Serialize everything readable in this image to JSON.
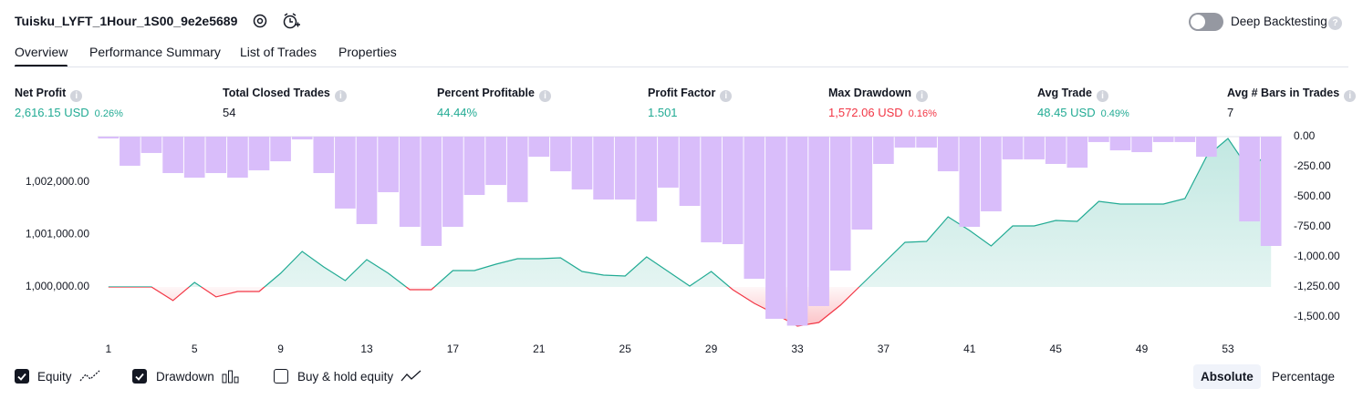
{
  "header": {
    "title": "Tuisku_LYFT_1Hour_1S00_9e2e5689",
    "deep_backtesting": "Deep Backtesting"
  },
  "tabs": [
    "Overview",
    "Performance Summary",
    "List of Trades",
    "Properties"
  ],
  "active_tab": 0,
  "metrics": [
    {
      "label": "Net Profit",
      "value": "2,616.15 USD",
      "percent": "0.26%",
      "color": "#22ab94"
    },
    {
      "label": "Total Closed Trades",
      "value": "54",
      "color": "#131722"
    },
    {
      "label": "Percent Profitable",
      "value": "44.44%",
      "color": "#22ab94"
    },
    {
      "label": "Profit Factor",
      "value": "1.501",
      "color": "#22ab94"
    },
    {
      "label": "Max Drawdown",
      "value": "1,572.06 USD",
      "percent": "0.16%",
      "color": "#f23645"
    },
    {
      "label": "Avg Trade",
      "value": "48.45 USD",
      "percent": "0.49%",
      "color": "#22ab94"
    },
    {
      "label": "Avg # Bars in Trades",
      "value": "7",
      "color": "#131722"
    }
  ],
  "chart_data": {
    "type": "combo",
    "x": [
      1,
      2,
      3,
      4,
      5,
      6,
      7,
      8,
      9,
      10,
      11,
      12,
      13,
      14,
      15,
      16,
      17,
      18,
      19,
      20,
      21,
      22,
      23,
      24,
      25,
      26,
      27,
      28,
      29,
      30,
      31,
      32,
      33,
      34,
      35,
      36,
      37,
      38,
      39,
      40,
      41,
      42,
      43,
      44,
      45,
      46,
      47,
      48,
      49,
      50,
      51,
      52,
      53,
      54,
      55
    ],
    "xlim": [
      0.5,
      55.5
    ],
    "xticks": [
      1,
      5,
      9,
      13,
      17,
      21,
      25,
      29,
      33,
      37,
      41,
      45,
      49,
      53
    ],
    "ylim": [
      999130,
      1002870
    ],
    "yticks": [
      {
        "value": 1000000,
        "label": "1,000,000.00"
      },
      {
        "value": 1001000,
        "label": "1,001,000.00"
      },
      {
        "value": 1002000,
        "label": "1,002,000.00"
      }
    ],
    "y2lim": [
      -1629,
      0
    ],
    "y2ticks": [
      {
        "value": 0,
        "label": "0.00"
      },
      {
        "value": -250,
        "label": "-250.00"
      },
      {
        "value": -500,
        "label": "-500.00"
      },
      {
        "value": -750,
        "label": "-750.00"
      },
      {
        "value": -1000,
        "label": "-1,000.00"
      },
      {
        "value": -1250,
        "label": "-1,250.00"
      },
      {
        "value": -1500,
        "label": "-1,500.00"
      }
    ],
    "series": [
      {
        "name": "Equity",
        "type": "area",
        "checked": true,
        "color": "#22ab94",
        "negative_color": "#f23645",
        "values": [
          1000000,
          1000000,
          1000000,
          999740,
          1000087,
          999810,
          999913,
          999913,
          1000261,
          1000678,
          1000383,
          1000122,
          1000522,
          1000261,
          999948,
          999948,
          1000313,
          1000313,
          1000435,
          1000539,
          1000539,
          1000557,
          1000296,
          1000226,
          1000209,
          1000574,
          1000296,
          1000017,
          1000296,
          999948,
          999687,
          999478,
          999252,
          999322,
          999652,
          1000052,
          1000452,
          1000852,
          1000870,
          1001339,
          1001078,
          1000783,
          1001165,
          1001165,
          1001270,
          1001252,
          1001635,
          1001583,
          1001583,
          1001583,
          1001687,
          1002487,
          1002835,
          1002226,
          1002616
        ]
      },
      {
        "name": "Drawdown",
        "type": "bar",
        "axis": "y2",
        "checked": true,
        "color": "#d9bdfa",
        "values": [
          -15,
          -242,
          -136,
          -303,
          -341,
          -303,
          -341,
          -280,
          -205,
          -23,
          -303,
          -598,
          -727,
          -462,
          -750,
          -909,
          -750,
          -485,
          -402,
          -545,
          -167,
          -288,
          -439,
          -523,
          -523,
          -705,
          -424,
          -576,
          -879,
          -894,
          -1182,
          -1515,
          -1572,
          -1409,
          -1114,
          -773,
          -227,
          -91,
          -91,
          -288,
          -750,
          -621,
          -189,
          -189,
          -227,
          -258,
          -45,
          -114,
          -129,
          -45,
          -45,
          -167,
          0,
          -705,
          -909
        ]
      },
      {
        "name": "Buy & hold equity",
        "checked": false
      }
    ]
  },
  "scale_buttons": [
    "Absolute",
    "Percentage"
  ],
  "active_scale": 0
}
